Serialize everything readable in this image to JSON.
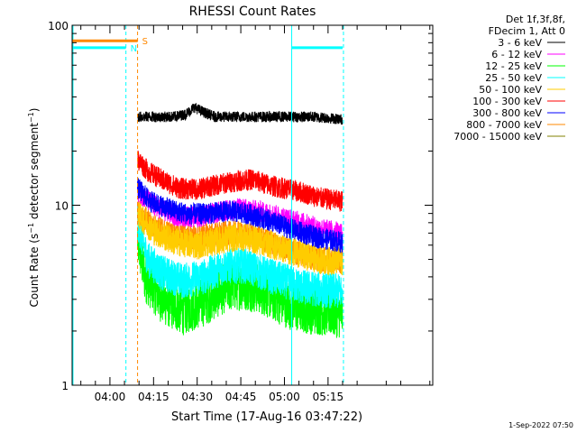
{
  "chart_data": {
    "type": "line",
    "title": "RHESSI Count Rates",
    "xlabel": "Start Time (17-Aug-16 03:47:22)",
    "ylabel_main": "Count Rate (s",
    "ylabel_sup1": "−1",
    "ylabel_mid": " detector segment",
    "ylabel_sup2": "−1",
    "ylabel_end": ")",
    "y_scale": "log",
    "ylim": [
      1,
      100
    ],
    "y_ticks": [
      {
        "value": 1,
        "label": "1"
      },
      {
        "value": 10,
        "label": "10"
      },
      {
        "value": 100,
        "label": "100"
      }
    ],
    "xlim_min": [
      227,
      351
    ],
    "x_ticks": [
      {
        "min": 240,
        "label": "04:00"
      },
      {
        "min": 255,
        "label": "04:15"
      },
      {
        "min": 270,
        "label": "04:30"
      },
      {
        "min": 285,
        "label": "04:45"
      },
      {
        "min": 300,
        "label": "05:00"
      },
      {
        "min": 315,
        "label": "05:15"
      }
    ],
    "legend_header": [
      "Det 1f,3f,8f,",
      "FDecim 1, Att 0"
    ],
    "legend_position": "right",
    "series": [
      {
        "name": "3 - 6 keV",
        "color": "#000000",
        "start_min": 249.5,
        "points": [
          [
            249.5,
            31
          ],
          [
            255,
            31
          ],
          [
            262,
            31
          ],
          [
            266,
            32
          ],
          [
            269,
            35
          ],
          [
            272,
            33
          ],
          [
            276,
            31
          ],
          [
            282,
            31
          ],
          [
            290,
            31
          ],
          [
            300,
            31
          ],
          [
            310,
            31
          ],
          [
            320,
            30
          ]
        ],
        "noise": 0.03
      },
      {
        "name": "6 - 12 keV",
        "color": "#ff00ff",
        "start_min": 249.5,
        "points": [
          [
            249.5,
            12
          ],
          [
            255,
            10
          ],
          [
            262,
            8.8
          ],
          [
            270,
            8.6
          ],
          [
            278,
            9.2
          ],
          [
            285,
            9.6
          ],
          [
            292,
            9.2
          ],
          [
            300,
            8.5
          ],
          [
            306,
            8.0
          ],
          [
            312,
            7.4
          ],
          [
            320,
            7.0
          ]
        ],
        "noise": 0.06
      },
      {
        "name": "12 - 25 keV",
        "color": "#00ff00",
        "start_min": 249.5,
        "points": [
          [
            249.5,
            6.5
          ],
          [
            252,
            4.0
          ],
          [
            258,
            3.0
          ],
          [
            265,
            2.6
          ],
          [
            272,
            2.9
          ],
          [
            280,
            3.5
          ],
          [
            286,
            3.6
          ],
          [
            292,
            3.4
          ],
          [
            298,
            3.0
          ],
          [
            304,
            2.7
          ],
          [
            312,
            2.6
          ],
          [
            320,
            2.5
          ]
        ],
        "noise": 0.14
      },
      {
        "name": "25 - 50 keV",
        "color": "#00ffff",
        "start_min": 249.5,
        "points": [
          [
            249.5,
            8
          ],
          [
            253,
            5.0
          ],
          [
            258,
            4.2
          ],
          [
            265,
            3.8
          ],
          [
            272,
            4.0
          ],
          [
            280,
            4.6
          ],
          [
            287,
            4.6
          ],
          [
            294,
            4.1
          ],
          [
            300,
            3.8
          ],
          [
            306,
            3.5
          ],
          [
            312,
            3.4
          ],
          [
            320,
            3.3
          ]
        ],
        "noise": 0.1
      },
      {
        "name": "50 - 100 keV",
        "color": "#ffcc00",
        "start_min": 249.5,
        "points": [
          [
            249.5,
            9
          ],
          [
            255,
            7.2
          ],
          [
            262,
            6.3
          ],
          [
            270,
            6.0
          ],
          [
            278,
            6.4
          ],
          [
            285,
            6.7
          ],
          [
            292,
            6.3
          ],
          [
            300,
            5.7
          ],
          [
            308,
            5.2
          ],
          [
            314,
            4.9
          ],
          [
            320,
            4.9
          ]
        ],
        "noise": 0.08
      },
      {
        "name": "100 - 300 keV",
        "color": "#ff0000",
        "start_min": 249.5,
        "points": [
          [
            249.5,
            18
          ],
          [
            253,
            15.5
          ],
          [
            258,
            13.8
          ],
          [
            264,
            12.4
          ],
          [
            270,
            12.2
          ],
          [
            276,
            12.9
          ],
          [
            283,
            13.6
          ],
          [
            289,
            13.9
          ],
          [
            295,
            12.9
          ],
          [
            300,
            12.4
          ],
          [
            306,
            11.8
          ],
          [
            312,
            11.0
          ],
          [
            320,
            10.5
          ]
        ],
        "noise": 0.06
      },
      {
        "name": "300 - 800 keV",
        "color": "#0000ff",
        "start_min": 249.5,
        "points": [
          [
            249.5,
            12.5
          ],
          [
            254,
            10.5
          ],
          [
            260,
            9.6
          ],
          [
            267,
            8.9
          ],
          [
            274,
            9.0
          ],
          [
            281,
            9.3
          ],
          [
            288,
            8.9
          ],
          [
            295,
            8.2
          ],
          [
            302,
            7.4
          ],
          [
            310,
            6.7
          ],
          [
            320,
            6.2
          ]
        ],
        "noise": 0.06
      },
      {
        "name": "800 - 7000 keV",
        "color": "#ff8800",
        "start_min": 249.5,
        "points": [
          [
            249.5,
            9.5
          ],
          [
            254,
            7.8
          ],
          [
            260,
            7.0
          ],
          [
            268,
            6.6
          ],
          [
            276,
            6.9
          ],
          [
            284,
            7.0
          ],
          [
            291,
            6.6
          ],
          [
            298,
            6.0
          ],
          [
            305,
            5.4
          ],
          [
            312,
            5.0
          ],
          [
            320,
            4.9
          ]
        ],
        "noise": 0.07
      },
      {
        "name": "7000 - 15000 keV",
        "color": "#808000",
        "start_min": 249.5,
        "points": [
          [
            249.5,
            3.0
          ],
          [
            320,
            3.0
          ]
        ],
        "noise": 0.0
      }
    ],
    "attenuator_bar": {
      "color": "#ff8800",
      "start_min": 227,
      "end_min": 249.5,
      "value": 82,
      "label": "S"
    },
    "night_bars": [
      {
        "color": "#00ffff",
        "start_min": 227,
        "end_min": 245.5,
        "value": 75,
        "label": "N"
      },
      {
        "color": "#00ffff",
        "start_min": 302.5,
        "end_min": 320,
        "value": 75,
        "label": ""
      }
    ],
    "vlines": [
      {
        "min": 227.3,
        "color": "#00ffff",
        "style": "solid"
      },
      {
        "min": 245.5,
        "color": "#00ffff",
        "style": "dashed"
      },
      {
        "min": 249.5,
        "color": "#ff8800",
        "style": "dashed"
      },
      {
        "min": 302.5,
        "color": "#00ffff",
        "style": "solid"
      },
      {
        "min": 320.3,
        "color": "#00ffff",
        "style": "dashed"
      }
    ],
    "footer_date": "1-Sep-2022 07:50"
  }
}
